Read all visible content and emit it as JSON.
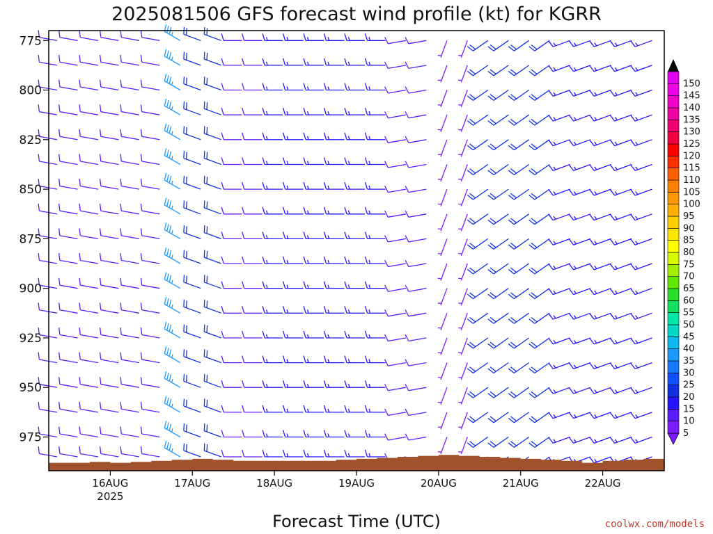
{
  "chart_data": {
    "type": "wind-barb-profile",
    "title": "2025081506 GFS forecast wind profile (kt) for KGRR",
    "xlabel": "Forecast Time (UTC)",
    "y_axis": {
      "reversed": true,
      "range": [
        770,
        992
      ],
      "ticks": [
        775,
        800,
        825,
        850,
        875,
        900,
        925,
        950,
        975
      ]
    },
    "x_axis": {
      "range": [
        "2025-08-15 06",
        "2025-08-22 18"
      ],
      "ticks": [
        {
          "date": "2025-08-16",
          "label": "16AUG",
          "sublabel": "2025"
        },
        {
          "date": "2025-08-17",
          "label": "17AUG",
          "sublabel": ""
        },
        {
          "date": "2025-08-18",
          "label": "18AUG",
          "sublabel": ""
        },
        {
          "date": "2025-08-19",
          "label": "19AUG",
          "sublabel": ""
        },
        {
          "date": "2025-08-20",
          "label": "20AUG",
          "sublabel": ""
        },
        {
          "date": "2025-08-21",
          "label": "21AUG",
          "sublabel": ""
        },
        {
          "date": "2025-08-22",
          "label": "22AUG",
          "sublabel": ""
        }
      ]
    },
    "colorbar": {
      "unit": "kt",
      "levels": [
        5,
        10,
        15,
        20,
        25,
        30,
        35,
        40,
        45,
        50,
        55,
        60,
        65,
        70,
        75,
        80,
        85,
        90,
        95,
        100,
        105,
        110,
        115,
        120,
        125,
        130,
        135,
        140,
        145,
        150
      ],
      "colors": [
        "#7a1cff",
        "#5a1cff",
        "#2414ff",
        "#1030e0",
        "#1050ff",
        "#1878ff",
        "#1a9aff",
        "#10b8f0",
        "#00d8c8",
        "#00e8a8",
        "#10e060",
        "#28e028",
        "#60e800",
        "#a0f000",
        "#d8f800",
        "#ffff00",
        "#ffe800",
        "#ffd000",
        "#ffb000",
        "#ff9800",
        "#ff8000",
        "#ff6000",
        "#ff3000",
        "#ff0000",
        "#f00040",
        "#f00070",
        "#f000a0",
        "#f000c8",
        "#f000e8",
        "#e000f0"
      ]
    },
    "terrain": {
      "color": "#a0522d",
      "description": "surface pressure (hPa)",
      "series": [
        {
          "date": "2025-08-15 06",
          "pres": 988
        },
        {
          "date": "2025-08-15 12",
          "pres": 988
        },
        {
          "date": "2025-08-15 18",
          "pres": 987.5
        },
        {
          "date": "2025-08-16 00",
          "pres": 988
        },
        {
          "date": "2025-08-16 06",
          "pres": 987.5
        },
        {
          "date": "2025-08-16 12",
          "pres": 987
        },
        {
          "date": "2025-08-16 18",
          "pres": 986.5
        },
        {
          "date": "2025-08-17 00",
          "pres": 986
        },
        {
          "date": "2025-08-17 06",
          "pres": 986.5
        },
        {
          "date": "2025-08-17 12",
          "pres": 987
        },
        {
          "date": "2025-08-17 18",
          "pres": 987
        },
        {
          "date": "2025-08-18 00",
          "pres": 987
        },
        {
          "date": "2025-08-18 06",
          "pres": 987
        },
        {
          "date": "2025-08-18 12",
          "pres": 987
        },
        {
          "date": "2025-08-18 18",
          "pres": 986.5
        },
        {
          "date": "2025-08-19 00",
          "pres": 986
        },
        {
          "date": "2025-08-19 06",
          "pres": 985.5
        },
        {
          "date": "2025-08-19 12",
          "pres": 985
        },
        {
          "date": "2025-08-19 18",
          "pres": 984.5
        },
        {
          "date": "2025-08-20 00",
          "pres": 984
        },
        {
          "date": "2025-08-20 06",
          "pres": 984.5
        },
        {
          "date": "2025-08-20 12",
          "pres": 985
        },
        {
          "date": "2025-08-20 18",
          "pres": 985.5
        },
        {
          "date": "2025-08-21 00",
          "pres": 986
        },
        {
          "date": "2025-08-21 06",
          "pres": 986.5
        },
        {
          "date": "2025-08-21 12",
          "pres": 987
        },
        {
          "date": "2025-08-21 18",
          "pres": 988
        },
        {
          "date": "2025-08-22 00",
          "pres": 987
        },
        {
          "date": "2025-08-22 06",
          "pres": 986.5
        },
        {
          "date": "2025-08-22 12",
          "pres": 986
        },
        {
          "date": "2025-08-22 18",
          "pres": 985.5
        }
      ]
    },
    "wind_levels": [
      775,
      787.5,
      800,
      812.5,
      825,
      837.5,
      850,
      862.5,
      875,
      887.5,
      900,
      912.5,
      925,
      937.5,
      950,
      962.5,
      975,
      985
    ],
    "wind_segments": [
      {
        "start": "2025-08-15 06",
        "end": "2025-08-16 18",
        "dir": 280,
        "spd": 10
      },
      {
        "start": "2025-08-16 18",
        "end": "2025-08-17 00",
        "dir": 300,
        "spd": 35
      },
      {
        "start": "2025-08-17 00",
        "end": "2025-08-17 12",
        "dir": 290,
        "spd": 20
      },
      {
        "start": "2025-08-17 12",
        "end": "2025-08-18 00",
        "dir": 270,
        "spd": 12
      },
      {
        "start": "2025-08-18 00",
        "end": "2025-08-19 12",
        "dir": 270,
        "spd": 15
      },
      {
        "start": "2025-08-19 12",
        "end": "2025-08-20 00",
        "dir": 260,
        "spd": 10
      },
      {
        "start": "2025-08-20 00",
        "end": "2025-08-20 12",
        "dir": 200,
        "spd": 8
      },
      {
        "start": "2025-08-20 12",
        "end": "2025-08-21 12",
        "dir": 235,
        "spd": 22
      },
      {
        "start": "2025-08-21 12",
        "end": "2025-08-22 18",
        "dir": 250,
        "spd": 15
      }
    ],
    "credit": "coolwx.com/models"
  }
}
